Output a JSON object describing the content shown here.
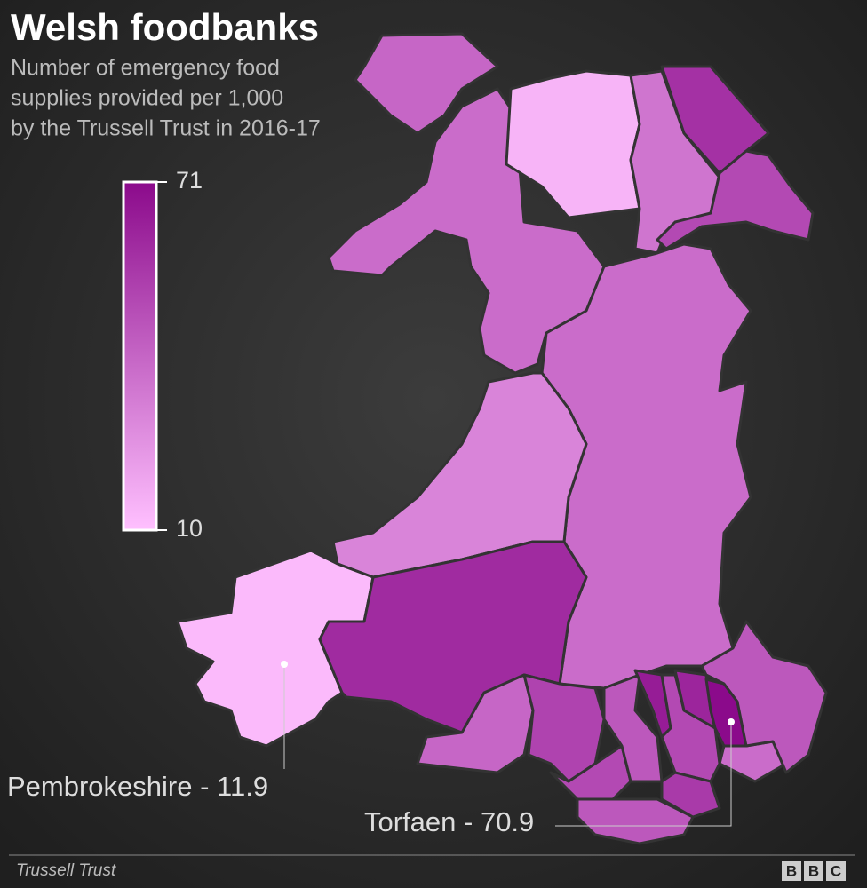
{
  "chart_data": {
    "type": "choropleth",
    "title": "Welsh foodbanks",
    "subtitle": [
      "Number of emergency food",
      "supplies provided per 1,000",
      "by the Trussell Trust in 2016-17"
    ],
    "scale": [
      10,
      71
    ],
    "scale_ticks": [
      71,
      10
    ],
    "colors": [
      "#ffc0ff",
      "#8b0a8b"
    ],
    "regions": [
      40,
      38,
      14,
      35,
      58,
      50,
      38,
      30,
      11.9,
      60,
      40,
      52,
      50,
      45,
      45,
      65,
      50,
      62,
      70.9,
      38,
      45,
      55
    ],
    "annotations": [
      "Pembrokeshire - 11.9",
      "Torfaen - 70.9"
    ],
    "source": "Trussell Trust",
    "logo": [
      "B",
      "B",
      "C"
    ]
  }
}
